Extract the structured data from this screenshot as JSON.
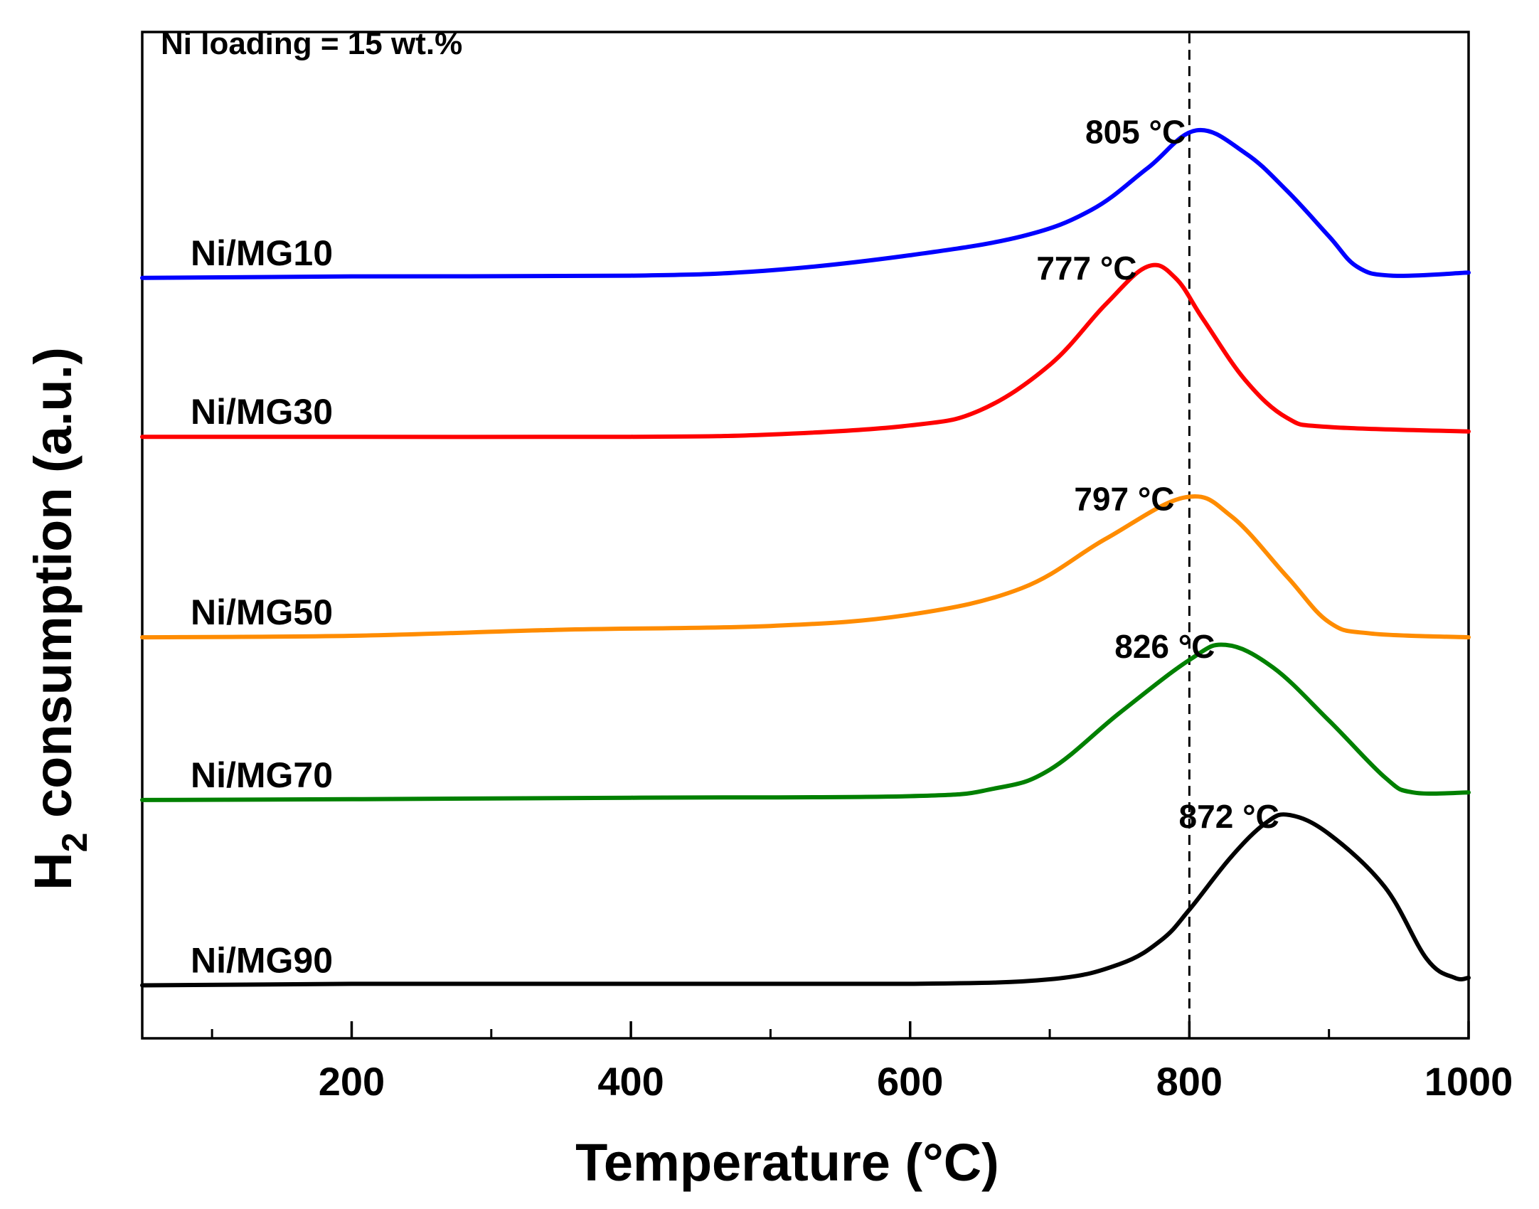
{
  "chart_data": {
    "type": "line",
    "title": "",
    "note": "Ni loading = 15 wt.%",
    "xlabel": "Temperature (°C)",
    "ylabel_main": "H",
    "ylabel_sub": "2",
    "ylabel_rest": " consumption (a.u.)",
    "xlim": [
      50,
      1000
    ],
    "ylim": [
      0,
      13.3
    ],
    "x_major_ticks": [
      200,
      400,
      600,
      800,
      1000
    ],
    "x_minor_ticks": [
      100,
      300,
      500,
      700,
      900
    ],
    "x_tick_labels": [
      "200",
      "400",
      "600",
      "800",
      "1000"
    ],
    "reference_line_x": 800,
    "grid": false,
    "series": [
      {
        "name": "Ni/MG10",
        "color": "#0000ff",
        "peak_label": "805 °C",
        "points": [
          [
            50,
            10.05
          ],
          [
            200,
            10.07
          ],
          [
            400,
            10.08
          ],
          [
            500,
            10.15
          ],
          [
            600,
            10.35
          ],
          [
            680,
            10.6
          ],
          [
            730,
            10.95
          ],
          [
            770,
            11.5
          ],
          [
            805,
            12.0
          ],
          [
            840,
            11.7
          ],
          [
            870,
            11.2
          ],
          [
            900,
            10.6
          ],
          [
            920,
            10.2
          ],
          [
            945,
            10.08
          ],
          [
            1000,
            10.12
          ]
        ]
      },
      {
        "name": "Ni/MG30",
        "color": "#ff0000",
        "peak_label": "777 °C",
        "points": [
          [
            50,
            7.95
          ],
          [
            200,
            7.95
          ],
          [
            400,
            7.95
          ],
          [
            500,
            7.98
          ],
          [
            600,
            8.1
          ],
          [
            650,
            8.3
          ],
          [
            700,
            8.9
          ],
          [
            740,
            9.7
          ],
          [
            770,
            10.2
          ],
          [
            790,
            10.05
          ],
          [
            810,
            9.5
          ],
          [
            840,
            8.7
          ],
          [
            870,
            8.2
          ],
          [
            900,
            8.08
          ],
          [
            1000,
            8.02
          ]
        ]
      },
      {
        "name": "Ni/MG50",
        "color": "#ff8c00",
        "peak_label": "797 °C",
        "points": [
          [
            50,
            5.3
          ],
          [
            200,
            5.32
          ],
          [
            350,
            5.4
          ],
          [
            500,
            5.45
          ],
          [
            600,
            5.6
          ],
          [
            680,
            5.95
          ],
          [
            740,
            6.6
          ],
          [
            797,
            7.15
          ],
          [
            830,
            6.9
          ],
          [
            870,
            6.1
          ],
          [
            900,
            5.5
          ],
          [
            930,
            5.35
          ],
          [
            1000,
            5.3
          ]
        ]
      },
      {
        "name": "Ni/MG70",
        "color": "#008000",
        "peak_label": "826 °C",
        "points": [
          [
            50,
            3.15
          ],
          [
            200,
            3.16
          ],
          [
            400,
            3.18
          ],
          [
            600,
            3.2
          ],
          [
            660,
            3.3
          ],
          [
            700,
            3.55
          ],
          [
            750,
            4.3
          ],
          [
            800,
            5.0
          ],
          [
            826,
            5.2
          ],
          [
            860,
            4.9
          ],
          [
            900,
            4.2
          ],
          [
            940,
            3.45
          ],
          [
            960,
            3.25
          ],
          [
            1000,
            3.25
          ]
        ]
      },
      {
        "name": "Ni/MG90",
        "color": "#000000",
        "peak_label": "872 °C",
        "points": [
          [
            50,
            0.7
          ],
          [
            200,
            0.72
          ],
          [
            400,
            0.72
          ],
          [
            600,
            0.72
          ],
          [
            700,
            0.78
          ],
          [
            750,
            0.98
          ],
          [
            780,
            1.3
          ],
          [
            800,
            1.7
          ],
          [
            830,
            2.4
          ],
          [
            855,
            2.85
          ],
          [
            872,
            2.95
          ],
          [
            900,
            2.7
          ],
          [
            940,
            2.0
          ],
          [
            970,
            1.05
          ],
          [
            990,
            0.8
          ],
          [
            1000,
            0.8
          ]
        ]
      }
    ]
  }
}
